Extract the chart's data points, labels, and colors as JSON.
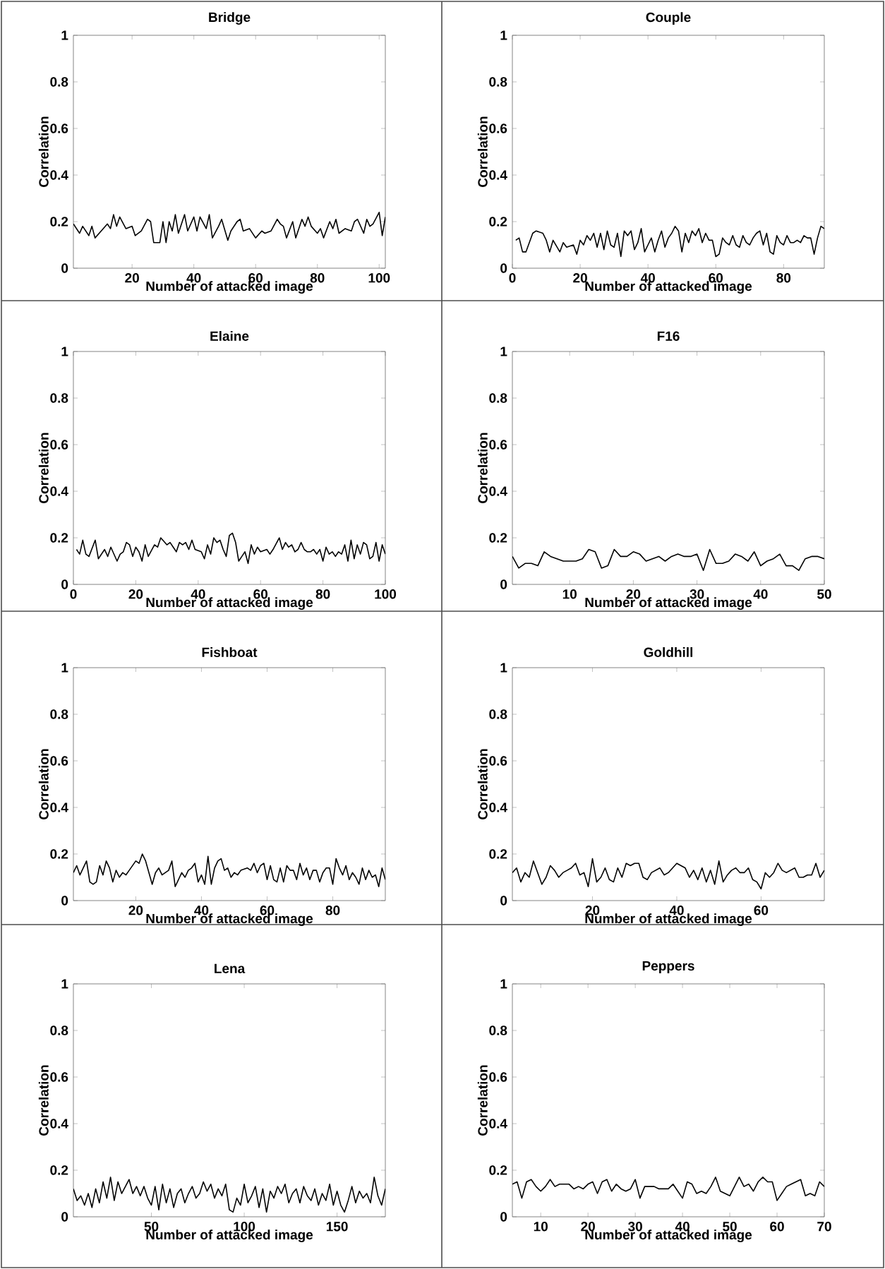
{
  "chart_data": [
    {
      "type": "line",
      "title": "Bridge",
      "xlabel": "Number of attacked image",
      "ylabel": "Correlation",
      "color": "#000000",
      "xlim": [
        1,
        102
      ],
      "ylim": [
        0,
        1
      ],
      "xticks": [
        20,
        40,
        60,
        80,
        100
      ],
      "yticks": [
        0,
        0.2,
        0.4,
        0.6,
        0.8,
        1
      ],
      "x": [
        1,
        3,
        4,
        6,
        7,
        8,
        10,
        12,
        13,
        14,
        15,
        16,
        18,
        20,
        21,
        23,
        25,
        26,
        27,
        29,
        30,
        31,
        32,
        33,
        34,
        35,
        37,
        38,
        40,
        41,
        42,
        44,
        45,
        46,
        48,
        49,
        51,
        52,
        54,
        55,
        56,
        58,
        60,
        62,
        63,
        65,
        67,
        68,
        69,
        70,
        72,
        73,
        75,
        76,
        77,
        78,
        80,
        81,
        82,
        84,
        85,
        86,
        87,
        89,
        91,
        92,
        93,
        95,
        96,
        97,
        98,
        100,
        101,
        102
      ],
      "values": [
        0.19,
        0.15,
        0.18,
        0.14,
        0.18,
        0.13,
        0.16,
        0.19,
        0.17,
        0.23,
        0.18,
        0.22,
        0.17,
        0.18,
        0.14,
        0.16,
        0.21,
        0.2,
        0.11,
        0.11,
        0.2,
        0.11,
        0.2,
        0.16,
        0.23,
        0.15,
        0.23,
        0.16,
        0.22,
        0.16,
        0.22,
        0.17,
        0.23,
        0.13,
        0.18,
        0.21,
        0.12,
        0.16,
        0.2,
        0.21,
        0.16,
        0.17,
        0.13,
        0.16,
        0.15,
        0.16,
        0.21,
        0.19,
        0.18,
        0.13,
        0.2,
        0.13,
        0.21,
        0.18,
        0.22,
        0.18,
        0.15,
        0.17,
        0.13,
        0.2,
        0.17,
        0.21,
        0.15,
        0.17,
        0.16,
        0.2,
        0.21,
        0.15,
        0.21,
        0.18,
        0.19,
        0.24,
        0.14,
        0.22
      ]
    },
    {
      "type": "line",
      "title": "Couple",
      "xlabel": "Number of attacked image",
      "ylabel": "Correlation",
      "color": "#000000",
      "xlim": [
        0,
        92
      ],
      "ylim": [
        0,
        1
      ],
      "xticks": [
        0,
        20,
        40,
        60,
        80
      ],
      "yticks": [
        0,
        0.2,
        0.4,
        0.6,
        0.8,
        1
      ],
      "x": [
        1,
        2,
        3,
        4,
        6,
        7,
        9,
        10,
        11,
        12,
        14,
        15,
        16,
        18,
        19,
        20,
        21,
        22,
        23,
        24,
        25,
        26,
        27,
        28,
        29,
        30,
        31,
        32,
        33,
        34,
        35,
        36,
        37,
        38,
        39,
        40,
        41,
        42,
        43,
        44,
        45,
        46,
        47,
        48,
        49,
        50,
        51,
        52,
        53,
        54,
        55,
        56,
        57,
        58,
        59,
        60,
        61,
        62,
        63,
        64,
        65,
        66,
        67,
        68,
        69,
        70,
        71,
        72,
        73,
        74,
        75,
        76,
        77,
        78,
        79,
        80,
        81,
        82,
        83,
        84,
        85,
        86,
        87,
        88,
        89,
        90,
        91,
        92
      ],
      "values": [
        0.12,
        0.13,
        0.07,
        0.07,
        0.15,
        0.16,
        0.15,
        0.12,
        0.07,
        0.12,
        0.07,
        0.11,
        0.09,
        0.1,
        0.06,
        0.12,
        0.1,
        0.14,
        0.12,
        0.15,
        0.09,
        0.15,
        0.08,
        0.16,
        0.1,
        0.09,
        0.15,
        0.05,
        0.16,
        0.14,
        0.16,
        0.08,
        0.11,
        0.17,
        0.07,
        0.1,
        0.13,
        0.07,
        0.12,
        0.16,
        0.09,
        0.13,
        0.15,
        0.18,
        0.16,
        0.07,
        0.15,
        0.11,
        0.16,
        0.14,
        0.17,
        0.11,
        0.15,
        0.12,
        0.12,
        0.05,
        0.06,
        0.13,
        0.11,
        0.1,
        0.14,
        0.1,
        0.09,
        0.14,
        0.11,
        0.1,
        0.13,
        0.15,
        0.16,
        0.1,
        0.15,
        0.07,
        0.06,
        0.14,
        0.11,
        0.1,
        0.14,
        0.11,
        0.11,
        0.12,
        0.11,
        0.14,
        0.13,
        0.13,
        0.06,
        0.13,
        0.18,
        0.17
      ]
    },
    {
      "type": "line",
      "title": "Elaine",
      "xlabel": "Number of attacked image",
      "ylabel": "Correlation",
      "color": "#000000",
      "xlim": [
        0,
        100
      ],
      "ylim": [
        0,
        1
      ],
      "xticks": [
        0,
        20,
        40,
        60,
        80,
        100
      ],
      "yticks": [
        0,
        0.2,
        0.4,
        0.6,
        0.8,
        1
      ],
      "x": [
        1,
        2,
        3,
        4,
        5,
        7,
        8,
        10,
        11,
        12,
        14,
        15,
        16,
        17,
        18,
        19,
        20,
        21,
        22,
        23,
        24,
        26,
        27,
        28,
        30,
        31,
        32,
        33,
        34,
        35,
        36,
        37,
        38,
        39,
        41,
        42,
        43,
        44,
        45,
        46,
        47,
        48,
        49,
        50,
        51,
        52,
        53,
        54,
        55,
        56,
        57,
        58,
        59,
        60,
        62,
        63,
        64,
        66,
        67,
        68,
        69,
        70,
        71,
        72,
        73,
        74,
        75,
        76,
        77,
        78,
        79,
        80,
        81,
        82,
        83,
        84,
        85,
        86,
        87,
        88,
        89,
        90,
        91,
        92,
        93,
        94,
        95,
        96,
        97,
        98,
        99,
        100
      ],
      "values": [
        0.15,
        0.13,
        0.19,
        0.13,
        0.12,
        0.19,
        0.11,
        0.15,
        0.12,
        0.16,
        0.1,
        0.13,
        0.14,
        0.18,
        0.17,
        0.12,
        0.16,
        0.14,
        0.1,
        0.17,
        0.12,
        0.17,
        0.16,
        0.2,
        0.17,
        0.18,
        0.16,
        0.14,
        0.18,
        0.17,
        0.18,
        0.15,
        0.19,
        0.15,
        0.14,
        0.11,
        0.17,
        0.13,
        0.2,
        0.18,
        0.19,
        0.15,
        0.12,
        0.21,
        0.22,
        0.18,
        0.1,
        0.12,
        0.14,
        0.09,
        0.17,
        0.13,
        0.16,
        0.14,
        0.15,
        0.13,
        0.15,
        0.2,
        0.15,
        0.18,
        0.16,
        0.17,
        0.14,
        0.15,
        0.18,
        0.15,
        0.14,
        0.14,
        0.15,
        0.13,
        0.15,
        0.1,
        0.16,
        0.13,
        0.14,
        0.12,
        0.14,
        0.13,
        0.17,
        0.1,
        0.19,
        0.11,
        0.17,
        0.13,
        0.18,
        0.17,
        0.11,
        0.12,
        0.18,
        0.1,
        0.17,
        0.13
      ]
    },
    {
      "type": "line",
      "title": "F16",
      "xlabel": "Number of attacked image",
      "ylabel": "Correlation",
      "color": "#000000",
      "xlim": [
        1,
        50
      ],
      "ylim": [
        0,
        1
      ],
      "xticks": [
        10,
        20,
        30,
        40,
        50
      ],
      "yticks": [
        0,
        0.2,
        0.4,
        0.6,
        0.8,
        1
      ],
      "x": [
        1,
        2,
        3,
        4,
        5,
        6,
        7,
        8,
        9,
        10,
        11,
        12,
        13,
        14,
        15,
        16,
        17,
        18,
        19,
        20,
        21,
        22,
        23,
        24,
        25,
        26,
        27,
        28,
        29,
        30,
        31,
        32,
        33,
        34,
        35,
        36,
        37,
        38,
        39,
        40,
        41,
        42,
        43,
        44,
        45,
        46,
        47,
        48,
        49,
        50
      ],
      "values": [
        0.12,
        0.07,
        0.09,
        0.09,
        0.08,
        0.14,
        0.12,
        0.11,
        0.1,
        0.1,
        0.1,
        0.11,
        0.15,
        0.14,
        0.07,
        0.08,
        0.15,
        0.12,
        0.12,
        0.14,
        0.13,
        0.1,
        0.11,
        0.12,
        0.1,
        0.12,
        0.13,
        0.12,
        0.12,
        0.13,
        0.06,
        0.15,
        0.09,
        0.09,
        0.1,
        0.13,
        0.12,
        0.1,
        0.14,
        0.08,
        0.1,
        0.11,
        0.13,
        0.08,
        0.08,
        0.06,
        0.11,
        0.12,
        0.12,
        0.11
      ]
    },
    {
      "type": "line",
      "title": "Fishboat",
      "xlabel": "Number of attacked image",
      "ylabel": "Correlation",
      "color": "#000000",
      "xlim": [
        1,
        96
      ],
      "ylim": [
        0,
        1
      ],
      "xticks": [
        20,
        40,
        60,
        80
      ],
      "yticks": [
        0,
        0.2,
        0.4,
        0.6,
        0.8,
        1
      ],
      "x": [
        1,
        2,
        3,
        5,
        6,
        7,
        8,
        9,
        10,
        11,
        12,
        13,
        14,
        15,
        16,
        17,
        18,
        20,
        21,
        22,
        23,
        24,
        25,
        26,
        27,
        28,
        30,
        31,
        32,
        33,
        34,
        35,
        36,
        37,
        38,
        39,
        40,
        41,
        42,
        43,
        44,
        45,
        46,
        47,
        48,
        49,
        50,
        51,
        52,
        54,
        55,
        56,
        57,
        58,
        59,
        60,
        61,
        62,
        63,
        64,
        65,
        66,
        67,
        68,
        69,
        70,
        71,
        72,
        73,
        74,
        75,
        76,
        77,
        78,
        79,
        80,
        81,
        82,
        83,
        84,
        85,
        86,
        87,
        88,
        89,
        90,
        91,
        92,
        93,
        94,
        95,
        96
      ],
      "values": [
        0.12,
        0.15,
        0.11,
        0.17,
        0.08,
        0.07,
        0.08,
        0.15,
        0.11,
        0.17,
        0.14,
        0.08,
        0.13,
        0.1,
        0.12,
        0.11,
        0.13,
        0.17,
        0.16,
        0.2,
        0.17,
        0.12,
        0.07,
        0.12,
        0.14,
        0.11,
        0.13,
        0.17,
        0.06,
        0.09,
        0.12,
        0.1,
        0.13,
        0.14,
        0.16,
        0.08,
        0.11,
        0.07,
        0.19,
        0.07,
        0.14,
        0.17,
        0.18,
        0.13,
        0.14,
        0.1,
        0.12,
        0.11,
        0.13,
        0.14,
        0.13,
        0.16,
        0.12,
        0.15,
        0.16,
        0.09,
        0.15,
        0.09,
        0.08,
        0.14,
        0.08,
        0.15,
        0.13,
        0.13,
        0.09,
        0.16,
        0.11,
        0.14,
        0.09,
        0.13,
        0.13,
        0.08,
        0.12,
        0.14,
        0.14,
        0.07,
        0.18,
        0.14,
        0.11,
        0.15,
        0.09,
        0.12,
        0.1,
        0.07,
        0.14,
        0.09,
        0.13,
        0.1,
        0.11,
        0.06,
        0.14,
        0.09
      ]
    },
    {
      "type": "line",
      "title": "Goldhill",
      "xlabel": "Number of attacked image",
      "ylabel": "Correlation",
      "color": "#000000",
      "xlim": [
        1,
        75
      ],
      "ylim": [
        0,
        1
      ],
      "xticks": [
        20,
        40,
        60
      ],
      "yticks": [
        0,
        0.2,
        0.4,
        0.6,
        0.8,
        1
      ],
      "x": [
        1,
        2,
        3,
        4,
        5,
        6,
        7,
        8,
        9,
        10,
        11,
        12,
        13,
        14,
        15,
        16,
        17,
        18,
        19,
        20,
        21,
        22,
        23,
        24,
        25,
        26,
        27,
        28,
        29,
        30,
        31,
        32,
        33,
        34,
        35,
        36,
        37,
        38,
        39,
        40,
        41,
        42,
        43,
        44,
        45,
        46,
        47,
        48,
        49,
        50,
        51,
        52,
        53,
        54,
        55,
        56,
        57,
        58,
        59,
        60,
        61,
        62,
        63,
        64,
        65,
        66,
        67,
        68,
        69,
        70,
        71,
        72,
        73,
        74,
        75
      ],
      "values": [
        0.12,
        0.14,
        0.08,
        0.12,
        0.1,
        0.17,
        0.12,
        0.07,
        0.1,
        0.15,
        0.13,
        0.1,
        0.12,
        0.13,
        0.14,
        0.16,
        0.11,
        0.12,
        0.06,
        0.18,
        0.08,
        0.1,
        0.14,
        0.09,
        0.08,
        0.14,
        0.1,
        0.16,
        0.15,
        0.16,
        0.16,
        0.1,
        0.09,
        0.12,
        0.13,
        0.14,
        0.11,
        0.12,
        0.14,
        0.16,
        0.15,
        0.14,
        0.1,
        0.13,
        0.09,
        0.14,
        0.08,
        0.13,
        0.07,
        0.17,
        0.08,
        0.11,
        0.13,
        0.14,
        0.12,
        0.12,
        0.14,
        0.09,
        0.08,
        0.05,
        0.12,
        0.1,
        0.12,
        0.16,
        0.13,
        0.12,
        0.13,
        0.14,
        0.1,
        0.1,
        0.11,
        0.11,
        0.16,
        0.1,
        0.13
      ]
    },
    {
      "type": "line",
      "title": "Lena",
      "xlabel": "Number of attacked image",
      "ylabel": "Correlation",
      "color": "#000000",
      "xlim": [
        8,
        176
      ],
      "ylim": [
        0,
        1
      ],
      "xticks": [
        50,
        100,
        150
      ],
      "yticks": [
        0,
        0.2,
        0.4,
        0.6,
        0.8,
        1
      ],
      "x": [
        8,
        10,
        12,
        14,
        16,
        18,
        20,
        22,
        24,
        26,
        28,
        30,
        32,
        34,
        36,
        38,
        40,
        42,
        44,
        46,
        48,
        50,
        52,
        54,
        56,
        58,
        60,
        62,
        64,
        66,
        68,
        70,
        72,
        74,
        76,
        78,
        80,
        82,
        84,
        86,
        88,
        90,
        92,
        94,
        96,
        98,
        100,
        102,
        104,
        106,
        108,
        110,
        112,
        114,
        116,
        118,
        120,
        122,
        124,
        126,
        128,
        130,
        132,
        134,
        136,
        138,
        140,
        142,
        144,
        146,
        148,
        150,
        152,
        154,
        156,
        158,
        160,
        162,
        164,
        166,
        168,
        170,
        172,
        174,
        176
      ],
      "values": [
        0.12,
        0.07,
        0.09,
        0.05,
        0.1,
        0.04,
        0.12,
        0.06,
        0.15,
        0.08,
        0.17,
        0.07,
        0.15,
        0.1,
        0.13,
        0.16,
        0.1,
        0.13,
        0.09,
        0.13,
        0.08,
        0.05,
        0.13,
        0.03,
        0.14,
        0.06,
        0.12,
        0.04,
        0.1,
        0.12,
        0.06,
        0.1,
        0.13,
        0.08,
        0.1,
        0.15,
        0.11,
        0.14,
        0.08,
        0.12,
        0.09,
        0.14,
        0.03,
        0.02,
        0.08,
        0.05,
        0.14,
        0.06,
        0.09,
        0.13,
        0.04,
        0.12,
        0.02,
        0.11,
        0.08,
        0.13,
        0.1,
        0.14,
        0.06,
        0.1,
        0.12,
        0.06,
        0.13,
        0.09,
        0.07,
        0.12,
        0.05,
        0.1,
        0.07,
        0.14,
        0.05,
        0.11,
        0.05,
        0.02,
        0.07,
        0.13,
        0.06,
        0.11,
        0.08,
        0.1,
        0.06,
        0.17,
        0.09,
        0.05,
        0.12
      ]
    },
    {
      "type": "line",
      "title": "Peppers",
      "xlabel": "Number of attacked image",
      "ylabel": "Correlation",
      "color": "#000000",
      "xlim": [
        4,
        70
      ],
      "ylim": [
        0,
        1
      ],
      "xticks": [
        10,
        20,
        30,
        40,
        50,
        60,
        70
      ],
      "yticks": [
        0,
        0.2,
        0.4,
        0.6,
        0.8,
        1
      ],
      "x": [
        4,
        5,
        6,
        7,
        8,
        9,
        10,
        11,
        12,
        13,
        14,
        15,
        16,
        17,
        18,
        19,
        20,
        21,
        22,
        23,
        24,
        25,
        26,
        27,
        28,
        29,
        30,
        31,
        32,
        33,
        34,
        35,
        36,
        37,
        38,
        39,
        40,
        41,
        42,
        43,
        44,
        45,
        46,
        47,
        48,
        49,
        50,
        51,
        52,
        53,
        54,
        55,
        56,
        57,
        58,
        59,
        60,
        61,
        62,
        63,
        64,
        65,
        66,
        67,
        68,
        69,
        70
      ],
      "values": [
        0.14,
        0.15,
        0.08,
        0.15,
        0.16,
        0.13,
        0.11,
        0.13,
        0.16,
        0.13,
        0.14,
        0.14,
        0.14,
        0.12,
        0.13,
        0.12,
        0.14,
        0.15,
        0.1,
        0.15,
        0.16,
        0.11,
        0.14,
        0.12,
        0.11,
        0.12,
        0.16,
        0.08,
        0.13,
        0.13,
        0.13,
        0.12,
        0.12,
        0.12,
        0.14,
        0.11,
        0.08,
        0.15,
        0.14,
        0.1,
        0.11,
        0.1,
        0.13,
        0.17,
        0.11,
        0.1,
        0.09,
        0.13,
        0.17,
        0.13,
        0.14,
        0.11,
        0.15,
        0.17,
        0.15,
        0.15,
        0.07,
        0.1,
        0.13,
        0.14,
        0.15,
        0.16,
        0.09,
        0.1,
        0.09,
        0.15,
        0.13
      ]
    }
  ]
}
